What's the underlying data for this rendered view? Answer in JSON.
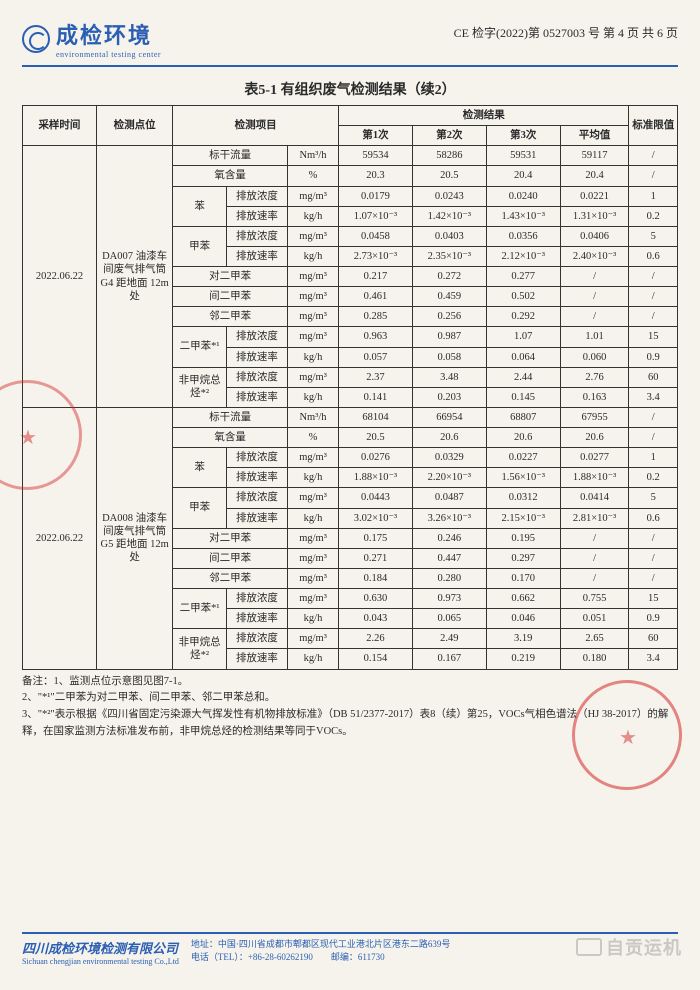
{
  "header": {
    "logo_cn": "成检环境",
    "logo_en": "environmental testing center",
    "doc_ref": "CE 检字(2022)第 0527003 号 第 4 页 共 6 页"
  },
  "title": "表5-1  有组织废气检测结果（续2）",
  "columns": {
    "c1": "采样时间",
    "c2": "检测点位",
    "c3": "检测项目",
    "c4_group": "检测结果",
    "c4a": "第1次",
    "c4b": "第2次",
    "c4c": "第3次",
    "c4d": "平均值",
    "c5": "标准限值"
  },
  "blocks": [
    {
      "date": "2022.06.22",
      "location": "DA007 油漆车间废气排气筒 G4 距地面 12m 处",
      "rows": [
        {
          "item": "标干流量",
          "sub": "",
          "unit": "Nm³/h",
          "v": [
            "59534",
            "58286",
            "59531",
            "59117"
          ],
          "std": "/"
        },
        {
          "item": "氧含量",
          "sub": "",
          "unit": "%",
          "v": [
            "20.3",
            "20.5",
            "20.4",
            "20.4"
          ],
          "std": "/"
        },
        {
          "item": "苯",
          "sub": "排放浓度",
          "unit": "mg/m³",
          "v": [
            "0.0179",
            "0.0243",
            "0.0240",
            "0.0221"
          ],
          "std": "1"
        },
        {
          "item": "",
          "sub": "排放速率",
          "unit": "kg/h",
          "v": [
            "1.07×10⁻³",
            "1.42×10⁻³",
            "1.43×10⁻³",
            "1.31×10⁻³"
          ],
          "std": "0.2"
        },
        {
          "item": "甲苯",
          "sub": "排放浓度",
          "unit": "mg/m³",
          "v": [
            "0.0458",
            "0.0403",
            "0.0356",
            "0.0406"
          ],
          "std": "5"
        },
        {
          "item": "",
          "sub": "排放速率",
          "unit": "kg/h",
          "v": [
            "2.73×10⁻³",
            "2.35×10⁻³",
            "2.12×10⁻³",
            "2.40×10⁻³"
          ],
          "std": "0.6"
        },
        {
          "item": "对二甲苯",
          "sub": "",
          "unit": "mg/m³",
          "v": [
            "0.217",
            "0.272",
            "0.277",
            "/"
          ],
          "std": "/"
        },
        {
          "item": "间二甲苯",
          "sub": "",
          "unit": "mg/m³",
          "v": [
            "0.461",
            "0.459",
            "0.502",
            "/"
          ],
          "std": "/"
        },
        {
          "item": "邻二甲苯",
          "sub": "",
          "unit": "mg/m³",
          "v": [
            "0.285",
            "0.256",
            "0.292",
            "/"
          ],
          "std": "/"
        },
        {
          "item": "二甲苯*¹",
          "sub": "排放浓度",
          "unit": "mg/m³",
          "v": [
            "0.963",
            "0.987",
            "1.07",
            "1.01"
          ],
          "std": "15"
        },
        {
          "item": "",
          "sub": "排放速率",
          "unit": "kg/h",
          "v": [
            "0.057",
            "0.058",
            "0.064",
            "0.060"
          ],
          "std": "0.9"
        },
        {
          "item": "非甲烷总烃*²",
          "sub": "排放浓度",
          "unit": "mg/m³",
          "v": [
            "2.37",
            "3.48",
            "2.44",
            "2.76"
          ],
          "std": "60"
        },
        {
          "item": "",
          "sub": "排放速率",
          "unit": "kg/h",
          "v": [
            "0.141",
            "0.203",
            "0.145",
            "0.163"
          ],
          "std": "3.4"
        }
      ]
    },
    {
      "date": "2022.06.22",
      "location": "DA008 油漆车间废气排气筒 G5 距地面 12m 处",
      "rows": [
        {
          "item": "标干流量",
          "sub": "",
          "unit": "Nm³/h",
          "v": [
            "68104",
            "66954",
            "68807",
            "67955"
          ],
          "std": "/"
        },
        {
          "item": "氧含量",
          "sub": "",
          "unit": "%",
          "v": [
            "20.5",
            "20.6",
            "20.6",
            "20.6"
          ],
          "std": "/"
        },
        {
          "item": "苯",
          "sub": "排放浓度",
          "unit": "mg/m³",
          "v": [
            "0.0276",
            "0.0329",
            "0.0227",
            "0.0277"
          ],
          "std": "1"
        },
        {
          "item": "",
          "sub": "排放速率",
          "unit": "kg/h",
          "v": [
            "1.88×10⁻³",
            "2.20×10⁻³",
            "1.56×10⁻³",
            "1.88×10⁻³"
          ],
          "std": "0.2"
        },
        {
          "item": "甲苯",
          "sub": "排放浓度",
          "unit": "mg/m³",
          "v": [
            "0.0443",
            "0.0487",
            "0.0312",
            "0.0414"
          ],
          "std": "5"
        },
        {
          "item": "",
          "sub": "排放速率",
          "unit": "kg/h",
          "v": [
            "3.02×10⁻³",
            "3.26×10⁻³",
            "2.15×10⁻³",
            "2.81×10⁻³"
          ],
          "std": "0.6"
        },
        {
          "item": "对二甲苯",
          "sub": "",
          "unit": "mg/m³",
          "v": [
            "0.175",
            "0.246",
            "0.195",
            "/"
          ],
          "std": "/"
        },
        {
          "item": "间二甲苯",
          "sub": "",
          "unit": "mg/m³",
          "v": [
            "0.271",
            "0.447",
            "0.297",
            "/"
          ],
          "std": "/"
        },
        {
          "item": "邻二甲苯",
          "sub": "",
          "unit": "mg/m³",
          "v": [
            "0.184",
            "0.280",
            "0.170",
            "/"
          ],
          "std": "/"
        },
        {
          "item": "二甲苯*¹",
          "sub": "排放浓度",
          "unit": "mg/m³",
          "v": [
            "0.630",
            "0.973",
            "0.662",
            "0.755"
          ],
          "std": "15"
        },
        {
          "item": "",
          "sub": "排放速率",
          "unit": "kg/h",
          "v": [
            "0.043",
            "0.065",
            "0.046",
            "0.051"
          ],
          "std": "0.9"
        },
        {
          "item": "非甲烷总烃*²",
          "sub": "排放浓度",
          "unit": "mg/m³",
          "v": [
            "2.26",
            "2.49",
            "3.19",
            "2.65"
          ],
          "std": "60"
        },
        {
          "item": "",
          "sub": "排放速率",
          "unit": "kg/h",
          "v": [
            "0.154",
            "0.167",
            "0.219",
            "0.180"
          ],
          "std": "3.4"
        }
      ]
    }
  ],
  "notes": {
    "lead": "备注：1、监测点位示意图见图7-1。",
    "n2": "2、\"*¹\"二甲苯为对二甲苯、间二甲苯、邻二甲苯总和。",
    "n3": "3、\"*²\"表示根据《四川省固定污染源大气挥发性有机物排放标准》（DB 51/2377-2017）表8（续）第25，VOCs气相色谱法（HJ 38-2017）的解释，在国家监测方法标准发布前，非甲烷总烃的检测结果等同于VOCs。"
  },
  "footer": {
    "company_cn": "四川成检环境检测有限公司",
    "company_en": "Sichuan chengjian environmental testing Co.,Ltd",
    "addr": "地址：中国·四川省成都市郫都区现代工业港北片区港东二路639号",
    "tel": "电话（TEL）：+86-28-60262190　　邮编：611730"
  },
  "watermark": "自贡运机"
}
